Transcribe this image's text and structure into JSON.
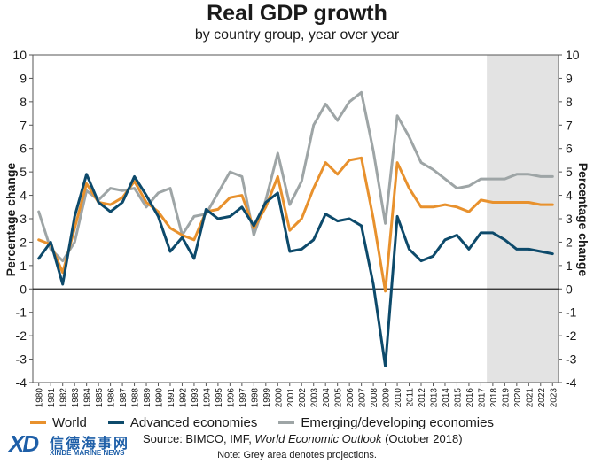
{
  "header": {
    "title": "Real GDP growth",
    "subtitle": "by country group, year over year"
  },
  "colors": {
    "world": "#e8912d",
    "advanced": "#0d4a6b",
    "emerging": "#9ea5a6",
    "projection_shade": "#e3e3e3"
  },
  "chart_data": {
    "type": "line",
    "title": "Real GDP growth",
    "subtitle": "by country group, year over year",
    "xlabel": "",
    "ylabel": "Percentage change",
    "ylim": [
      -4,
      10
    ],
    "y_ticks": [
      -4,
      -3,
      -2,
      -1,
      0,
      1,
      2,
      3,
      4,
      5,
      6,
      7,
      8,
      9,
      10
    ],
    "x": [
      "1980",
      "1981",
      "1982",
      "1983",
      "1984",
      "1985",
      "1986",
      "1987",
      "1988",
      "1989",
      "1990",
      "1991",
      "1992",
      "1993",
      "1994",
      "1995",
      "1996",
      "1997",
      "1998",
      "1999",
      "2000",
      "2001",
      "2002",
      "2003",
      "2004",
      "2005",
      "2006",
      "2007",
      "2008",
      "2009",
      "2010",
      "2011",
      "2012",
      "2013",
      "2014",
      "2015",
      "2016",
      "2017",
      "2018",
      "2019",
      "2020",
      "2021",
      "2022",
      "2023"
    ],
    "projection_start": "2018",
    "grid": false,
    "legend_position": "bottom",
    "series": [
      {
        "name": "World",
        "values": [
          2.1,
          1.9,
          0.7,
          2.6,
          4.5,
          3.7,
          3.6,
          3.9,
          4.6,
          3.7,
          3.3,
          2.6,
          2.3,
          2.1,
          3.3,
          3.4,
          3.9,
          4.0,
          2.6,
          3.5,
          4.8,
          2.5,
          3.0,
          4.3,
          5.4,
          4.9,
          5.5,
          5.6,
          3.0,
          -0.1,
          5.4,
          4.3,
          3.5,
          3.5,
          3.6,
          3.5,
          3.3,
          3.8,
          3.7,
          3.7,
          3.7,
          3.7,
          3.6,
          3.6
        ]
      },
      {
        "name": "Advanced economies",
        "values": [
          1.3,
          2.0,
          0.2,
          3.1,
          4.9,
          3.7,
          3.3,
          3.7,
          4.8,
          4.0,
          3.1,
          1.6,
          2.2,
          1.3,
          3.4,
          3.0,
          3.1,
          3.5,
          2.7,
          3.7,
          4.1,
          1.6,
          1.7,
          2.1,
          3.2,
          2.9,
          3.0,
          2.7,
          0.2,
          -3.3,
          3.1,
          1.7,
          1.2,
          1.4,
          2.1,
          2.3,
          1.7,
          2.4,
          2.4,
          2.1,
          1.7,
          1.7,
          1.6,
          1.5
        ]
      },
      {
        "name": "Emerging/developing economies",
        "values": [
          3.3,
          1.7,
          1.2,
          2.0,
          4.2,
          3.8,
          4.3,
          4.2,
          4.3,
          3.5,
          4.1,
          4.3,
          2.3,
          3.1,
          3.2,
          4.1,
          5.0,
          4.8,
          2.3,
          3.8,
          5.8,
          3.6,
          4.6,
          7.0,
          7.9,
          7.2,
          8.0,
          8.4,
          5.9,
          2.8,
          7.4,
          6.5,
          5.4,
          5.1,
          4.7,
          4.3,
          4.4,
          4.7,
          4.7,
          4.7,
          4.9,
          4.9,
          4.8,
          4.8
        ]
      }
    ]
  },
  "legend": {
    "world": "World",
    "advanced": "Advanced economies",
    "emerging": "Emerging/developing economies"
  },
  "logo": {
    "mark": "XD",
    "chinese": "信德海事网",
    "english": "XINDE MARINE NEWS"
  },
  "footer": {
    "source_prefix": "Source: BIMCO, IMF, ",
    "source_italic": "World Economic Outlook",
    "source_suffix": " (October 2018)",
    "note": "Note: Grey area denotes projections."
  }
}
